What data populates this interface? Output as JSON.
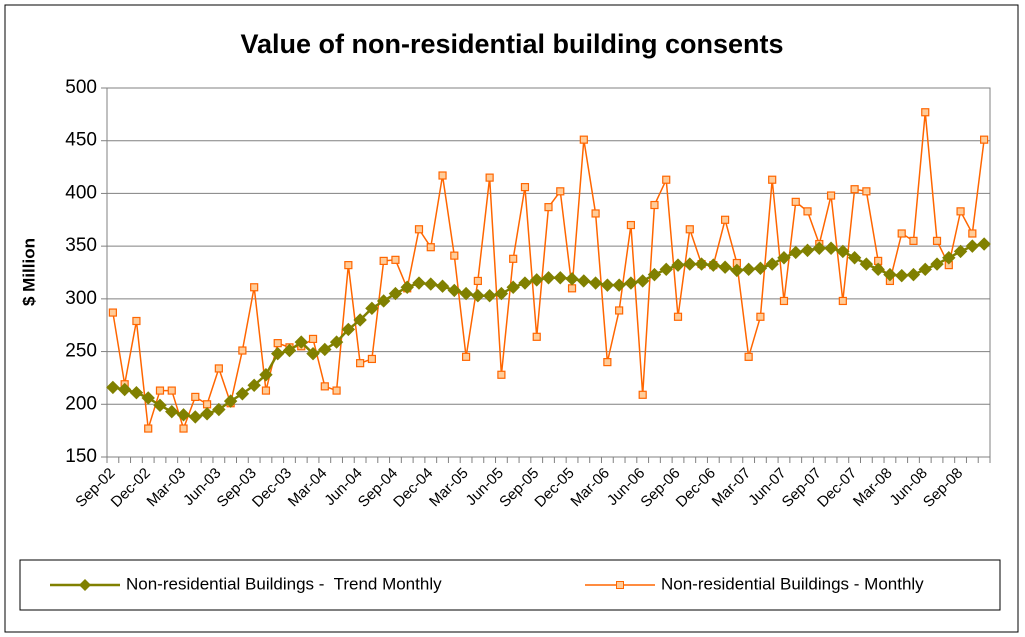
{
  "chart_data": {
    "type": "line",
    "title": "Value of non-residential building consents",
    "y_label": "$ Million",
    "categories": [
      "Sep-02",
      null,
      null,
      "Dec-02",
      null,
      null,
      "Mar-03",
      null,
      null,
      "Jun-03",
      null,
      null,
      "Sep-03",
      null,
      null,
      "Dec-03",
      null,
      null,
      "Mar-04",
      null,
      null,
      "Jun-04",
      null,
      null,
      "Sep-04",
      null,
      null,
      "Dec-04",
      null,
      null,
      "Mar-05",
      null,
      null,
      "Jun-05",
      null,
      null,
      "Sep-05",
      null,
      null,
      "Dec-05",
      null,
      null,
      "Mar-06",
      null,
      null,
      "Jun-06",
      null,
      null,
      "Sep-06",
      null,
      null,
      "Dec-06",
      null,
      null,
      "Mar-07",
      null,
      null,
      "Jun-07",
      null,
      null,
      "Sep-07",
      null,
      null,
      "Dec-07",
      null,
      null,
      "Mar-08",
      null,
      null,
      "Jun-08",
      null,
      null,
      "Sep-08",
      null,
      null
    ],
    "series": [
      {
        "name": "Non-residential Buildings -  Trend Monthly",
        "color": "#808000",
        "marker": "diamond",
        "values": [
          216,
          214,
          211,
          206,
          199,
          193,
          190,
          188,
          191,
          195,
          203,
          210,
          218,
          228,
          248,
          251,
          259,
          248,
          252,
          259,
          271,
          280,
          291,
          298,
          305,
          311,
          315,
          314,
          312,
          308,
          305,
          303,
          303,
          305,
          311,
          315,
          318,
          320,
          320,
          319,
          317,
          315,
          313,
          313,
          315,
          317,
          323,
          328,
          332,
          333,
          333,
          332,
          330,
          327,
          328,
          329,
          333,
          339,
          344,
          346,
          348,
          348,
          345,
          339,
          333,
          328,
          323,
          322,
          323,
          328,
          333,
          339,
          345,
          350,
          352
        ]
      },
      {
        "name": "Non-residential Buildings - Monthly",
        "color": "#ff6600",
        "marker": "square",
        "values": [
          287,
          219,
          279,
          177,
          213,
          213,
          177,
          207,
          200,
          234,
          201,
          251,
          311,
          213,
          258,
          254,
          255,
          262,
          217,
          213,
          332,
          239,
          243,
          336,
          337,
          310,
          366,
          349,
          417,
          341,
          245,
          317,
          415,
          228,
          338,
          406,
          264,
          387,
          402,
          310,
          451,
          381,
          240,
          289,
          370,
          209,
          389,
          413,
          283,
          366,
          333,
          332,
          375,
          334,
          245,
          283,
          413,
          298,
          392,
          383,
          352,
          398,
          298,
          404,
          402,
          336,
          317,
          362,
          355,
          477,
          355,
          332,
          383,
          362,
          451
        ]
      }
    ],
    "ylim": [
      150,
      500
    ],
    "yticks": [
      150,
      200,
      250,
      300,
      350,
      400,
      450,
      500
    ],
    "grid": true,
    "legend": "bottom"
  }
}
